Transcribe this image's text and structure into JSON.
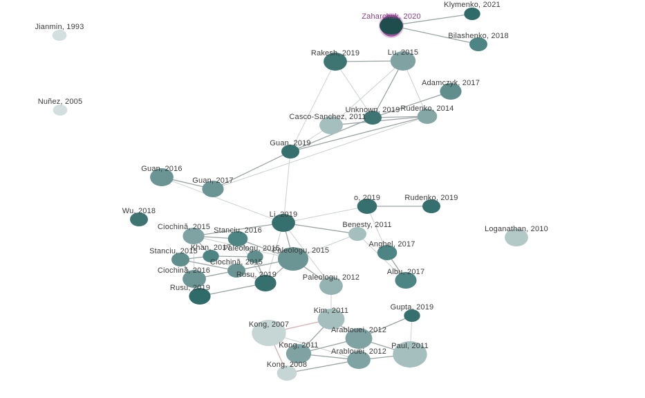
{
  "graph": {
    "selected_node": "Zaharchuk, 2020",
    "nodes": [
      {
        "id": "zaharchuk2020",
        "label": "Zaharchuk, 2020",
        "color": "#1f4d4d",
        "selected": true
      },
      {
        "id": "klymenko2021",
        "label": "Klymenko, 2021",
        "color": "#2e6b69"
      },
      {
        "id": "bilashenko2018",
        "label": "Bilashenko, 2018",
        "color": "#4d8584"
      },
      {
        "id": "jianmin1993",
        "label": "Jianmin, 1993",
        "color": "#d3dede"
      },
      {
        "id": "nunez2005",
        "label": "Nuñez, 2005",
        "color": "#d3dede"
      },
      {
        "id": "rakesh2019",
        "label": "Rakesh, 2019",
        "color": "#3e7573"
      },
      {
        "id": "lu2015",
        "label": "Lu, 2015",
        "color": "#7ea3a2"
      },
      {
        "id": "adamczyk2017",
        "label": "Adamczyk, 2017",
        "color": "#5f8e8d"
      },
      {
        "id": "unknown2019",
        "label": "Unknown, 2019",
        "color": "#3e7573"
      },
      {
        "id": "cascosanchez2011",
        "label": "Casco-Sanchez, 2011",
        "color": "#a5bfbe"
      },
      {
        "id": "rudenko2014",
        "label": "Rudenko, 2014",
        "color": "#85a8a7"
      },
      {
        "id": "guan2019",
        "label": "Guan, 2019",
        "color": "#36706e"
      },
      {
        "id": "guan2016",
        "label": "Guan, 2016",
        "color": "#6a9594"
      },
      {
        "id": "guan2017",
        "label": "Guan, 2017",
        "color": "#6a9594"
      },
      {
        "id": "o2019",
        "label": "o, 2019",
        "color": "#36706e"
      },
      {
        "id": "rudenko2019",
        "label": "Rudenko, 2019",
        "color": "#36706e"
      },
      {
        "id": "wu2018",
        "label": "Wu, 2018",
        "color": "#3e7573"
      },
      {
        "id": "li2019",
        "label": "Li, 2019",
        "color": "#36706e"
      },
      {
        "id": "benesty2011",
        "label": "Benesty, 2011",
        "color": "#a5bfbe"
      },
      {
        "id": "loganathan2010",
        "label": "Loganathan, 2010",
        "color": "#b3c9c8"
      },
      {
        "id": "ciochina2015",
        "label": "Ciochină, 2015",
        "color": "#7ea3a2"
      },
      {
        "id": "stanciu2016",
        "label": "Stanciu, 2016",
        "color": "#4d8584"
      },
      {
        "id": "khan2017",
        "label": "Khan, 2017",
        "color": "#4d8584"
      },
      {
        "id": "paleologu2015",
        "label": "Paleologu, 2015",
        "color": "#5f8e8d"
      },
      {
        "id": "paleologu2015b",
        "label": "Paleologu, 2015",
        "color": "#6a9594"
      },
      {
        "id": "stanciu2015",
        "label": "Stanciu, 2015",
        "color": "#5f8e8d"
      },
      {
        "id": "ciochina2015b",
        "label": "Ciochină, 2015",
        "color": "#6a9594"
      },
      {
        "id": "ciochina2016",
        "label": "Ciochină, 2016",
        "color": "#6a9594"
      },
      {
        "id": "rusu2019",
        "label": "Rusu, 2019",
        "color": "#36706e"
      },
      {
        "id": "rusu2019b",
        "label": "Rusu, 2019",
        "color": "#2e6b69"
      },
      {
        "id": "anghel2017",
        "label": "Anghel, 2017",
        "color": "#4d8584"
      },
      {
        "id": "albu2017",
        "label": "Albu, 2017",
        "color": "#4d8584"
      },
      {
        "id": "paleologu2012",
        "label": "Paleologu, 2012",
        "color": "#95b3b2"
      },
      {
        "id": "kim2011",
        "label": "Kim, 2011",
        "color": "#a5bfbe"
      },
      {
        "id": "gupta2019",
        "label": "Gupta, 2019",
        "color": "#36706e"
      },
      {
        "id": "kong2007",
        "label": "Kong, 2007",
        "color": "#c5d6d5"
      },
      {
        "id": "arablouei2012",
        "label": "Arablouei, 2012",
        "color": "#7ea3a2"
      },
      {
        "id": "kong2011",
        "label": "Kong, 2011",
        "color": "#7ea3a2"
      },
      {
        "id": "paul2011",
        "label": "Paul, 2011",
        "color": "#a5bfbe"
      },
      {
        "id": "arablouei2012b",
        "label": "Arablouei, 2012",
        "color": "#7ea3a2"
      },
      {
        "id": "kong2008",
        "label": "Kong, 2008",
        "color": "#c5d6d5"
      }
    ],
    "edges": [
      [
        "zaharchuk2020",
        "klymenko2021"
      ],
      [
        "zaharchuk2020",
        "bilashenko2018"
      ],
      [
        "lu2015",
        "unknown2019"
      ],
      [
        "rakesh2019",
        "lu2015"
      ],
      [
        "adamczyk2017",
        "unknown2019"
      ],
      [
        "unknown2019",
        "rudenko2014"
      ],
      [
        "cascosanchez2011",
        "rudenko2014"
      ],
      [
        "unknown2019",
        "guan2019"
      ],
      [
        "guan2019",
        "rudenko2014"
      ],
      [
        "guan2016",
        "guan2017"
      ],
      [
        "guan2019",
        "guan2017"
      ],
      [
        "o2019",
        "rudenko2019"
      ],
      [
        "anghel2017",
        "albu2017"
      ],
      [
        "li2019",
        "ciochina2015"
      ],
      [
        "li2019",
        "paleologu2015b"
      ],
      [
        "li2019",
        "benesty2011"
      ],
      [
        "ciochina2015",
        "stanciu2016"
      ],
      [
        "ciochina2015",
        "khan2017"
      ],
      [
        "stanciu2016",
        "paleologu2015"
      ],
      [
        "stanciu2016",
        "paleologu2015b"
      ],
      [
        "khan2017",
        "paleologu2015"
      ],
      [
        "stanciu2015",
        "khan2017"
      ],
      [
        "stanciu2015",
        "ciochina2015b"
      ],
      [
        "ciochina2015b",
        "paleologu2015b"
      ],
      [
        "ciochina2016",
        "ciochina2015b"
      ],
      [
        "ciochina2016",
        "rusu2019b"
      ],
      [
        "rusu2019",
        "rusu2019b"
      ],
      [
        "rusu2019",
        "paleologu2015b"
      ],
      [
        "paleologu2015b",
        "paleologu2012"
      ],
      [
        "paleologu2015",
        "rusu2019"
      ],
      [
        "stanciu2015",
        "ciochina2016"
      ],
      [
        "kim2011",
        "kong2007"
      ],
      [
        "kim2011",
        "arablouei2012"
      ],
      [
        "kim2011",
        "kong2011"
      ],
      [
        "kong2007",
        "kong2011"
      ],
      [
        "kong2007",
        "kong2008"
      ],
      [
        "arablouei2012",
        "paul2011"
      ],
      [
        "arablouei2012",
        "arablouei2012b"
      ],
      [
        "arablouei2012",
        "kong2011"
      ],
      [
        "kong2011",
        "arablouei2012b"
      ],
      [
        "kong2008",
        "arablouei2012b"
      ],
      [
        "arablouei2012b",
        "paul2011"
      ],
      [
        "kong2011",
        "kong2008"
      ],
      [
        "gupta2019",
        "arablouei2012"
      ]
    ]
  }
}
